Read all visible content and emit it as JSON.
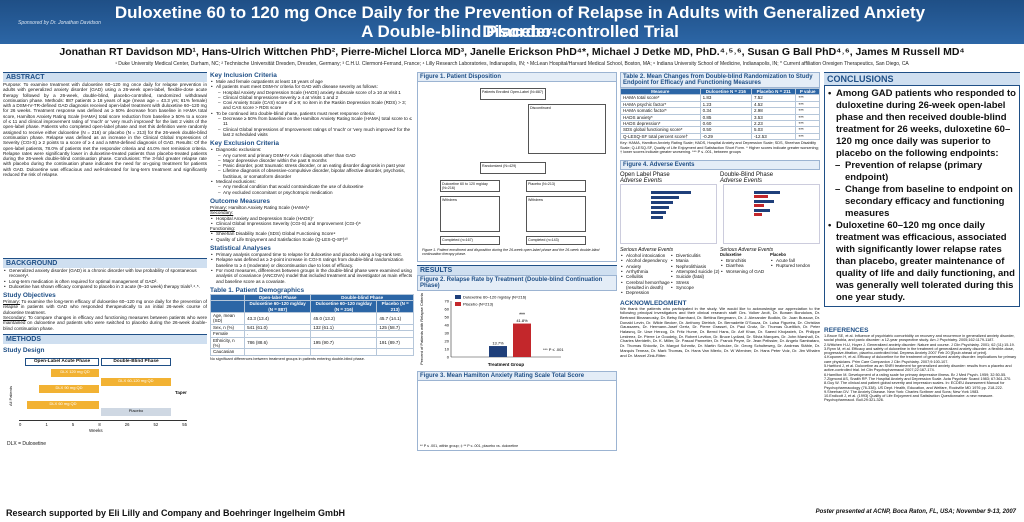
{
  "title_line1": "Duloxetine 60 to 120 mg Once Daily for the Prevention of Relapse in Adults with Generalized Anxiety Disorder:",
  "title_line2": "A Double-blind Placebo-controlled Trial",
  "sponsor": "Sponsored by\nDr. Jonathan Davidson",
  "authors": "Jonathan RT Davidson MD¹, Hans-Ulrich Wittchen PhD², Pierre-Michel Llorca MD³, Janelle Erickson PhD⁴*, Michael J Detke MD, PhD.⁴˒⁵˒⁶, Susan G Ball PhD⁴˒⁶, James M Russell MD⁴",
  "affiliations": "¹ Duke University Medical Center, Durham, NC; ² Technische Universität Dresden, Dresden, Germany; ³ C.H.U. Clermont-Ferrand, France; ⁴ Lilly Research Laboratories, Indianapolis, IN; ⁵ McLean Hospital/Harvard Medical School, Boston, MA; ⁶ Indiana University School of Medicine, Indianapolis, IN; * Current affiliation Orexigen Therapeutics, San Diego, CA",
  "abstract": {
    "heading": "ABSTRACT",
    "text": "Purpose: To examine treatment with duloxetine 60–120 mg once daily for relapse prevention in adults with generalized anxiety disorder (GAD) using a 26-week open-label, flexible-dose acute therapy followed by a 26-week, double-blind, placebo-controlled, randomized withdrawal continuation phase. Methods: 887 patients ≥ 18 years of age (mean age = 43.3 yrs; 61% female) with a DSM-IV-TR-defined GAD diagnosis received open-label treatment with duloxetine 60–120 mg for 26 weeks. Treatment response was defined as ≥ 50% decrease from baseline in HAMA total score, Hamilton Anxiety Rating Scale (HAMA) total score reduction from baseline ≥ 50% to a score of ≤ 11 and clinical improvement rating of 'much' or 'very much improved' for the last 2 visits of the open-label phase. Patients who completed open-label phase and met this definition were randomly assigned to receive either duloxetine (N = 216) or placebo (N = 213) for the 26-week double-blind continuation phase. Relapse was defined as an increase in the Clinical Global Impressions of Severity (CGI-S) ≥ 2 points to a score of ≥ 4 and a MINI-defined diagnosis of GAD. Results: Of the open-label patients, 78.0% of patients met the responder criteria and 44.0% met remission criteria. Relapse rates were significantly lower in duloxetine-treated patients than placebo-treated patients during the 26-week double-blind continuation phase. Conclusions: The 3-fold greater relapse rate with placebo during the continuation phase indicates the need for on-going treatment for patients with GAD. Duloxetine was efficacious and well-tolerated for long-term treatment and significantly reduced the risk of relapse."
  },
  "background": {
    "heading": "BACKGROUND",
    "items": [
      "Generalized anxiety disorder (GAD) is a chronic disorder with low probability of spontaneous recovery¹.",
      "Long-term medication is often required for optimal management of GAD².",
      "Duloxetine has shown efficacy compared to placebo in 3 acute (9–10 week) therapy trials³˒⁴˒⁵."
    ]
  },
  "study_objectives": {
    "heading": "Study Objectives",
    "primary_label": "Primary:",
    "primary": "To examine the long-term efficacy of duloxetine 60–120 mg once daily for the prevention of relapse in patients with GAD who responded therapeutically to an initial 26-week course of duloxetine treatment.",
    "secondary_label": "Secondary:",
    "secondary": "To compare changes in efficacy and functioning measures between patients who were maintained on duloxetine and patients who were switched to placebo during the 26-week double-blind continuation phase."
  },
  "methods": {
    "heading": "METHODS",
    "design_heading": "Study Design",
    "design": {
      "open_label": "Open-Label Acute Phase",
      "double_blind": "Double-Blind Phase",
      "arms": [
        "DLX 120 mg QD",
        "DLX 90 mg QD",
        "DLX 60 mg QD"
      ],
      "continuation": "DLX 60-120 mg QD",
      "placebo": "Placebo",
      "taper": "Taper",
      "all_patients": "All Patients",
      "weeks_label": "Weeks",
      "weeks": [
        "0",
        "1",
        "5",
        "8",
        "26",
        "52",
        "55"
      ],
      "dlx_note": "DLX = Duloxetine"
    }
  },
  "key_inclusion": {
    "heading": "Key Inclusion Criteria",
    "items": [
      "Male and female outpatients at least 18 years of age",
      "All patients must meet DSM-IV criteria for GAD with disease severity as follows:"
    ],
    "subs": [
      "Hospital Anxiety and Depression Scale (HADS) anxiety subscale score of ≥ 10 at Visit 1",
      "Clinical Global Impressions-Severity ≥ 4 at Visits 1 and 2",
      "Covi Anxiety Scale (CAS) score of ≥ 9; no item in the Raskin Depression Scale (RDS) > 3; and CAS score > RDS score"
    ],
    "items2": [
      "To be continued into double-blind phase, patients must meet response criteria:"
    ],
    "subs2": [
      "Decrease ≥ 50% from baseline on the Hamilton Anxiety Rating Scale (HAMA) total score to ≤ 11",
      "Clinical Global Impressions of Improvement ratings of 'much' or 'very much improved' for the last 2 scheduled visits"
    ]
  },
  "key_exclusion": {
    "heading": "Key Exclusion Criteria",
    "items": [
      "Diagnostic exclusions:"
    ],
    "subs": [
      "Any current and primary DSM-IV Axis I diagnosis other than GAD",
      "Major depressive disorder within the past 6 months",
      "Panic disorder, post traumatic stress disorder, or an eating disorder diagnosis in past year",
      "Lifetime diagnosis of obsessive-compulsive disorder, bipolar affective disorder, psychosis, factitious, or somatoform disorder"
    ],
    "items2": [
      "Medical exclusions:"
    ],
    "subs2": [
      "Any medical condition that would contraindicate the use of duloxetine",
      "Any excluded concomitant or psychotropic medication"
    ]
  },
  "outcome": {
    "heading": "Outcome Measures",
    "primary_label": "Primary:",
    "primary": "Hamilton Anxiety Rating Scale (HAMA)⁶",
    "secondary_label": "Secondary:",
    "secondary": [
      "Hospital Anxiety and Depression Scale (HADS)⁷",
      "Clinical Global Impressions Severity (CGI-S) and Improvement (CGI-I)⁸"
    ],
    "functioning_label": "Functioning:",
    "functioning": [
      "Sheehan Disability Scale (SDS) Global Functioning Score⁹",
      "Quality of Life Enjoyment and Satisfaction Scale (Q-LES-Q-SF)¹⁰"
    ]
  },
  "statistical": {
    "heading": "Statistical Analyses",
    "items": [
      "Primary analysis compared time to relapse for duloxetine and placebo using a log-rank test.",
      "Relapse was defined as ≥ 2-point increase in CGI-S ratings from double-blind randomization baseline to ≥ 4 (moderate) or discontinuation due to loss of efficacy.",
      "For most measures, differences between groups in the double-blind phase were examined using analysis of covariance (ANCOVA) model that included treatment and investigator as main effects and baseline score as a covariate."
    ]
  },
  "table1": {
    "title": "Table 1. Patient Demographics",
    "groups": [
      "Open-label Phase",
      "Double-blind Phase"
    ],
    "cols": [
      "Duloxetine 60–120 mg/day (N = 887)",
      "Duloxetine 60–120 mg/day (N = 216)",
      "Placebo (N = 213)"
    ],
    "rows": [
      [
        "Age, mean (SD)",
        "43.3 (13.4)",
        "45.0 (13.2)",
        "45.7 (14.1)"
      ],
      [
        "Sex, n (%)",
        "541 (61.0)",
        "132 (61.1)",
        "125 (58.7)"
      ],
      [
        "Female",
        ".",
        "",
        ""
      ],
      [
        "Ethnicity, n (%)",
        "786 (88.6)",
        "195 (90.7)",
        "191 (89.7)"
      ],
      [
        "Caucasian",
        "",
        "",
        ""
      ]
    ],
    "note": "No significant differences between treatment groups in patients entering double-blind phase."
  },
  "fig1": {
    "title": "Figure 1. Patient Disposition",
    "screened": "Patients Enrolled Open-Label (N=887)",
    "discontinued_ol": "Discontinued",
    "randomized": "Randomized (N=429)",
    "dlx": "Duloxetine 60 to 120 mg/day (N=216)",
    "pbo": "Placebo (N=213)",
    "withdrew_dlx": "Withdrew",
    "withdrew_pbo": "Withdrew",
    "completed_dlx": "Completed (n=167)",
    "completed_pbo": "Completed (n=143)",
    "caption": "Figure 1. Patient enrollment and disposition during the 26-week open-label phase and the 26-week double-blind continuation therapy phase."
  },
  "table2": {
    "title": "Table 2. Mean Changes from Double-blind Randomization to Study Endpoint for Efficacy and Functioning Measures",
    "headers": [
      "Measure",
      "Duloxetine N = 216",
      "Placebo N = 211",
      "P value"
    ],
    "rows": [
      [
        "HAMA total score*",
        "1.83",
        "7.52",
        "***"
      ],
      [
        "HAMA psychic factor*",
        "1.23",
        "4.52",
        "***"
      ],
      [
        "HAMA somatic factor*",
        "0.34",
        "2.98",
        "***"
      ],
      [
        "HADS anxiety*",
        "0.85",
        "3.53",
        "***"
      ],
      [
        "HADS depression*",
        "0.60",
        "2.23",
        "***"
      ],
      [
        "SDS global functioning score*",
        "0.50",
        "5.03",
        "***"
      ],
      [
        "Q-LESQ-SF total percent score†",
        "-0.29",
        "-12.53",
        "***"
      ]
    ],
    "note": "Key: HAMA, Hamilton Anxiety Rating Scale; HADS, Hospital Anxiety and Depression Scale; SDS, Sheehan Disability Scale; Q-LESQ-SF, Quality of Life Enjoyment and Satisfaction Short Form. * Higher scores indicate greater worsening; † lower scores indicate greater worsening. *** P ≤ .001, between groups"
  },
  "fig4": {
    "title": "Figure 4. Adverse Events",
    "left_title": "Open Label Phase",
    "left_sub": "Adverse Events",
    "right_title": "Double-Blind Phase",
    "right_sub": "Adverse Events",
    "sa_left": "Serious Adverse Events",
    "sa_right": "Serious Adverse Events",
    "sa_left_items": [
      "Alcohol intoxication",
      "Alcohol dependency",
      "Anxiety",
      "Arrhythmia",
      "Cellulitis",
      "Cerebral hemorrhage (resulted in death)",
      "Depression"
    ],
    "sa_mid_items": [
      "Diverticulitis",
      "Mania",
      "Nephrolithiasis",
      "Attempted suicide (2)",
      "Suicide (fatal)",
      "Stress",
      "Syncope"
    ],
    "sa_right_items": [
      "Bronchitis",
      "Diarrhea",
      "Worsening of GAD"
    ],
    "sa_right_pbo": [
      "Acute fall",
      "Ruptured tendon"
    ],
    "dlx_label": "Duloxetine",
    "pbo_label": "Placebo"
  },
  "fig2": {
    "title": "Figure 2. Relapse Rate by Treatment (Double-blind Continuation Phase)",
    "yaxis": "Percent of Patients with Relapse Criteria",
    "xaxis": "Treatment Group",
    "legend": [
      "Duloxetine 60–120 mg/day (N=216)",
      "Placebo (N=213)"
    ],
    "annot": "***",
    "note": "*** P ≤ .001"
  },
  "fig3": {
    "title": "Figure 3. Mean Hamilton Anxiety Rating Scale Total Score",
    "note": "** P ≤ .001, within group; ‡ ** P ≤ .001, placebo vs. duloxetine"
  },
  "results_heading": "RESULTS",
  "ack": {
    "heading": "ACKNOWLEDGMENT",
    "text": "We thank the patients who participated in the study. We would like to acknowledge our appreciation to the following principal investigators and their clinical research staff: Drs. Volker Arolt, Dr. Bonam Bondolow, Dr. Bertrand Binaranosky, Dr. Betsy Barnhard, Dr. Bettina Bergmann, Dr. J. Alexander Bodkin, Dr. Juan Bussow, Dr. Donald Levin, Dr. Wilde Becker, Dr. Anthony Dietrich, Dr. Bernadette D'Souza, Dr. Luisa Figueira, Dr. Christian Gaussares, Dr. Hermann-Josef Gertz, Dr. Pierre Grasset, Dr. Paul Grotz, Dr. Thomas Gueltlich, Dr. Peter Halasnq, Dr. Uwe Herzog, Dr. Fritz Hume, Dr. Bernd Hans, Dr. Arif Khan, Dr. Saeed Khojasteh, Dr. Philippe Lestreez, Dr. Pierre Le Goudeig, Dr. Robert Leviton, Dr. Bruce Lydiard, Dr. Silvia Marques, Dr. John Marshall, Dr. Charles Merideth, Dr. K. Miller, Dr. Pascal Pannetier, Dr. Franck Peyre, Dr. Jean Pelissier, Dr. Angelo Sambataro, Dr. Thomas Shiovitz, Dr. Margot Schmitz, Dr. Martin Schulze, Dr. Georg Schulteweg, Dr. Andreas Stähle, Dr. Marquis Teneza, Dr. Mark Thomas, Dr. Hans Van Mierlo, Dr. W Wieniner, Dr. Hans Peter Volz, Dr. Jim Whalen and Dr. Marcel Zink-Ritter."
  },
  "conclusions": {
    "heading": "CONCLUSIONS",
    "items": [
      "Among GAD patients who responded to duloxetine during 26-week open-label phase and then received double-blind treatment for 26 weeks, duloxetine 60–120 mg once daily was superior to placebo on the following endpoints:"
    ],
    "subs": [
      "Prevention of relapse (primary endpoint)",
      "Change from baseline to endpoint on secondary efficacy and functioning measures"
    ],
    "items2": [
      "Duloxetine 60–120 mg once daily treatment was efficacious, associated with significantly lower relapse rates than placebo, greater maintenance of quality of life and daily functioning, and was generally well tolerated during this one year study."
    ]
  },
  "references": {
    "heading": "REFERENCES",
    "items": [
      "1.Bruce SE, et al. Influence of psychiatric comorbidity on recovery and recurrence in generalized anxiety disorder, social phobia, and panic disorder: a 12-year prospective study. Am J Psychiatry. 2005;162:1179-1187.",
      "2.Wittchen H-U, Hoyer J. Generalized anxiety disorder: Nature and course. J Clin Psychiatry. 2001; 62 (11):15-19.",
      "3.Rynn M, et al. Efficacy and safety of duloxetine in the treatment of generalized anxiety disorder: a flexible-dose, progressive-titration, placebo-controlled trial. Depress Anxiety 2007 Feb 20 [Epub ahead of print].",
      "4.Koponen H, et al. Efficacy of duloxetine for the treatment of generalized anxiety disorder: implications for primary care physicians. Prim Care Companion J Clin Psychiatry. 2007;9:100-107.",
      "5.Hartford J, et al. Duloxetine as an SNRI treatment for generalized anxiety disorder: results from a placebo and active-controlled trial. Int Clin Psychopharmacol 2007;22:167-174.",
      "6.Hamilton M. Development of a rating scale for primary depressive illness. Br J Med Psych. 1959; 32:50-55.",
      "7.Zigmond AS, Snaith RP. The Hospital Anxiety and Depression Scale. Acta Psychiatr Scand 1983; 67:361-370.",
      "8.Guy W. The clinical and patient global severity and impression scales. In: ECDEU Assessment Manual for Psychopharmacology (76-338). US Dept. Health, Education, and Welfare, Rockville MD 1976 pp. 218-222.",
      "9.Sheehan DV. The Anxiety Disease. New York: Charles Scribner and Sons; New York 1983.",
      "10.Endicott J, et al. (1993) Quality of Life Enjoyment and Satisfaction Questionnaire: a new measure. Psychopharmacol. Bull.29:321-326."
    ]
  },
  "footer_left": "Research supported by Eli Lilly and Company and Boehringer Ingelheim GmbH",
  "footer_right": "Poster presented at ACNP, Boca Raton, FL, USA; November 9-13, 2007",
  "chart_data": {
    "type": "bar",
    "categories": [
      "Treatment Group"
    ],
    "series": [
      {
        "name": "Duloxetine 60–120 mg/day (N=216)",
        "values": [
          13.7
        ]
      },
      {
        "name": "Placebo (N=213)",
        "values": [
          41.8
        ]
      }
    ],
    "title": "Figure 2. Relapse Rate by Treatment (Double-blind Continuation Phase)",
    "xlabel": "Treatment Group",
    "ylabel": "Percent of Patients with Relapse Criteria",
    "ylim": [
      0,
      70
    ],
    "yticks": [
      "0",
      "10",
      "20",
      "30",
      "40",
      "50",
      "60",
      "70"
    ],
    "colors": [
      "#1f3f7a",
      "#c3272b"
    ]
  }
}
